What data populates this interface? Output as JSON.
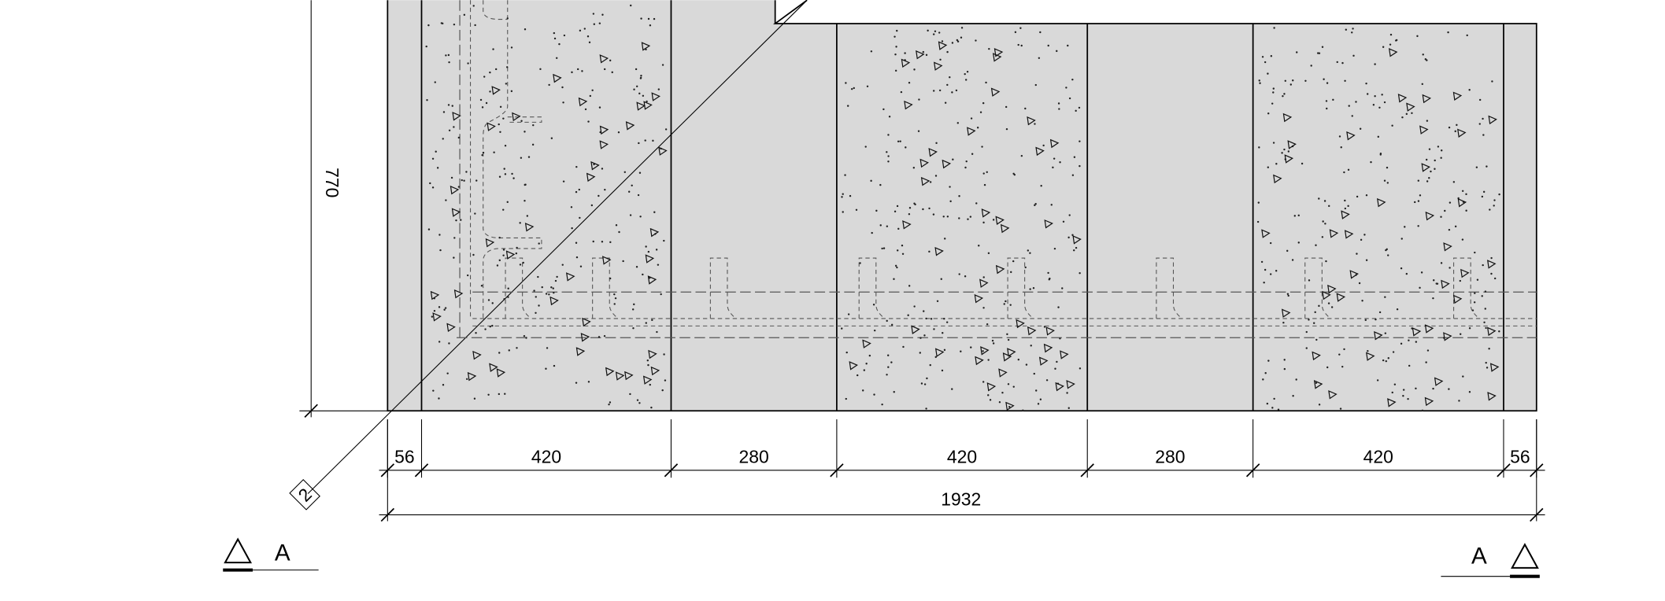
{
  "dimensions": {
    "height": "770",
    "segments": [
      "56",
      "420",
      "280",
      "420",
      "280",
      "420",
      "56"
    ],
    "total": "1932"
  },
  "detail_ref": "2",
  "section_left": "A",
  "section_right": "A"
}
